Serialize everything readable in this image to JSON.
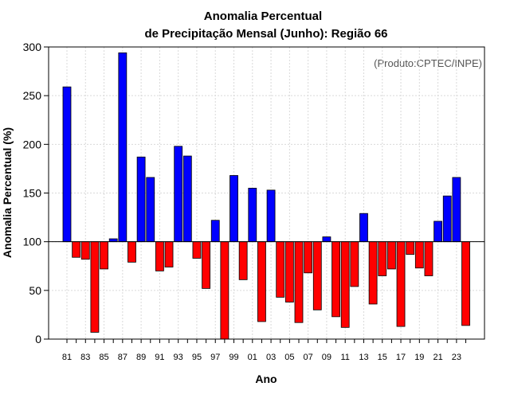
{
  "chart_data": {
    "type": "bar",
    "title_line1": "Anomalia Percentual",
    "title_line2": "de Precipitação Mensal (Junho): Região 66",
    "xlabel": "Ano",
    "ylabel": "Anomalia Percentual (%)",
    "credit": "(Produto:CPTEC/INPE)",
    "baseline": 100,
    "ylim": [
      0,
      300
    ],
    "yticks": [
      0,
      50,
      100,
      150,
      200,
      250,
      300
    ],
    "grid": true,
    "colors": {
      "above": "#0000ff",
      "below": "#ff0000"
    },
    "categories": [
      "81",
      "82",
      "83",
      "84",
      "85",
      "86",
      "87",
      "88",
      "89",
      "90",
      "91",
      "92",
      "93",
      "94",
      "95",
      "96",
      "97",
      "98",
      "99",
      "00",
      "01",
      "02",
      "03",
      "04",
      "05",
      "06",
      "07",
      "08",
      "09",
      "10",
      "11",
      "12",
      "13",
      "14",
      "15",
      "16",
      "17",
      "18",
      "19",
      "20",
      "21",
      "22",
      "23",
      "24"
    ],
    "values": [
      259,
      84,
      82,
      7,
      72,
      103,
      294,
      79,
      187,
      166,
      70,
      74,
      198,
      188,
      83,
      52,
      122,
      0,
      168,
      61,
      155,
      18,
      153,
      43,
      38,
      17,
      68,
      30,
      105,
      23,
      12,
      54,
      129,
      36,
      65,
      72,
      13,
      87,
      73,
      65,
      121,
      147,
      166,
      14
    ],
    "xtick_labels": [
      "81",
      "83",
      "85",
      "87",
      "89",
      "91",
      "93",
      "95",
      "97",
      "99",
      "01",
      "03",
      "05",
      "07",
      "09",
      "11",
      "13",
      "15",
      "17",
      "19",
      "21",
      "23"
    ]
  }
}
